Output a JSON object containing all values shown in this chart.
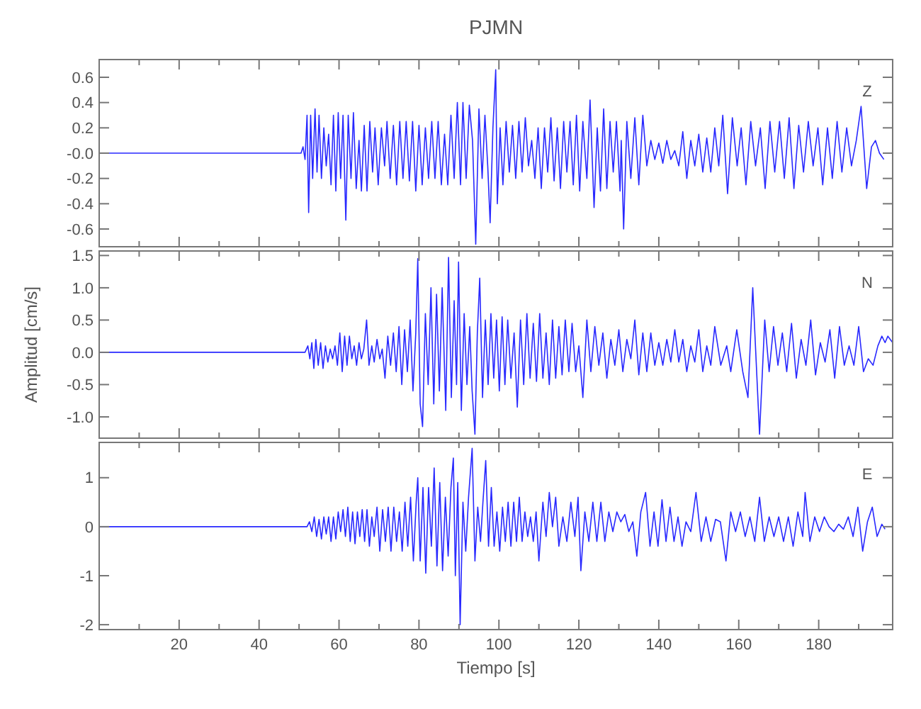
{
  "chart_data": [
    {
      "type": "line",
      "title": "PJMN",
      "annotations": [
        "Z"
      ],
      "xlim": [
        0,
        198.5
      ],
      "ylim": [
        -0.74,
        0.74
      ],
      "tick_labels": "y",
      "grid": false,
      "xticks": [
        {
          "value": 10,
          "label": null
        },
        20,
        {
          "value": 30,
          "label": null
        },
        40,
        {
          "value": 50,
          "label": null
        },
        60,
        {
          "value": 70,
          "label": null
        },
        80,
        {
          "value": 90,
          "label": null
        },
        100,
        {
          "value": 110,
          "label": null
        },
        120,
        {
          "value": 130,
          "label": null
        },
        140,
        {
          "value": 150,
          "label": null
        },
        160,
        {
          "value": 170,
          "label": null
        },
        180,
        {
          "value": 190,
          "label": null
        }
      ],
      "yticks": [
        {
          "value": -0.6,
          "label": "-0.6"
        },
        {
          "value": -0.4,
          "label": "-0.4"
        },
        {
          "value": -0.2,
          "label": "-0.2"
        },
        {
          "value": 0,
          "label": "-0.0"
        },
        0.2,
        0.4,
        0.6
      ],
      "series": [
        {
          "color": "#2828ff",
          "x": [
            0,
            50.5,
            51,
            51.5,
            52,
            52.4,
            52.9,
            53.4,
            54,
            54.5,
            55,
            55.6,
            56.2,
            56.8,
            57.4,
            58,
            58.6,
            59.2,
            59.8,
            60.4,
            61,
            61.7,
            62.3,
            63,
            63.6,
            64.3,
            65,
            65.6,
            66.3,
            67,
            67.7,
            68.4,
            69,
            69.8,
            70.6,
            71.4,
            72,
            72.8,
            73.6,
            74.4,
            75.2,
            76,
            76.8,
            77.6,
            78.4,
            79.2,
            80,
            80.8,
            81.6,
            82.4,
            83.2,
            84,
            84.8,
            85.6,
            86.4,
            87.2,
            88,
            88.8,
            89.6,
            90.4,
            91,
            91.8,
            92.6,
            93.4,
            94.2,
            95,
            95.8,
            96.5,
            97.2,
            97.8,
            98.5,
            99.2,
            99.6,
            100.3,
            101,
            101.8,
            102.6,
            103.4,
            104.2,
            105,
            105.8,
            106.6,
            107.4,
            108.2,
            109,
            109.8,
            110.6,
            111.4,
            112.2,
            113,
            113.8,
            114.6,
            115.4,
            116.2,
            117,
            117.8,
            118.6,
            119.4,
            120.2,
            121,
            122,
            122.8,
            123.8,
            124.6,
            125.4,
            126.2,
            127,
            127.8,
            128.6,
            129.4,
            130.3,
            130.6,
            131.2,
            132,
            133,
            134,
            135,
            136,
            137,
            138,
            139,
            140,
            141,
            142,
            143,
            144,
            145,
            146,
            147,
            148,
            149,
            150,
            151,
            152,
            153,
            154,
            155,
            156,
            157.2,
            158.4,
            159.6,
            160.6,
            161.8,
            163,
            164.2,
            165.4,
            166.6,
            167.8,
            169,
            170.2,
            171.4,
            172.6,
            173.8,
            175,
            176.2,
            177.4,
            178.6,
            179.8,
            181,
            182.2,
            183.4,
            184.6,
            185.8,
            187,
            188.2,
            189.4,
            190.6,
            192,
            193.2,
            194.2,
            195.2,
            196.3
          ],
          "values": [
            0,
            0,
            0.05,
            -0.05,
            0.3,
            -0.47,
            0.3,
            -0.2,
            0.35,
            -0.15,
            0.3,
            -0.2,
            0.2,
            -0.1,
            0.15,
            -0.25,
            0.3,
            -0.3,
            0.32,
            -0.2,
            0.3,
            -0.53,
            0.3,
            -0.2,
            0.32,
            -0.28,
            0.1,
            -0.3,
            0.22,
            -0.3,
            0.25,
            -0.15,
            0.2,
            -0.25,
            0.2,
            -0.1,
            0.25,
            -0.2,
            0.22,
            -0.25,
            0.25,
            -0.2,
            0.25,
            -0.22,
            0.25,
            -0.3,
            0.22,
            -0.25,
            0.2,
            -0.2,
            0.25,
            -0.2,
            0.25,
            -0.25,
            0.15,
            -0.25,
            0.3,
            -0.2,
            0.4,
            -0.25,
            0.4,
            -0.2,
            0.38,
            0.1,
            -0.72,
            0.35,
            -0.2,
            0.3,
            -0.1,
            -0.55,
            0.2,
            0.66,
            -0.4,
            0.2,
            -0.25,
            0.25,
            -0.15,
            0.22,
            -0.2,
            0.25,
            -0.15,
            0.28,
            -0.1,
            0.1,
            -0.2,
            0.2,
            -0.28,
            0.2,
            -0.15,
            0.28,
            -0.22,
            0.2,
            -0.28,
            0.25,
            -0.15,
            0.25,
            -0.25,
            0.3,
            -0.3,
            0.25,
            -0.2,
            0.42,
            -0.43,
            0.2,
            -0.3,
            0.35,
            -0.28,
            0.25,
            -0.15,
            0.25,
            -0.3,
            0.1,
            -0.6,
            0.25,
            -0.2,
            0.28,
            -0.25,
            0.3,
            -0.1,
            0.1,
            -0.05,
            0.08,
            -0.08,
            0.1,
            -0.05,
            0.02,
            -0.1,
            0.17,
            -0.2,
            0.1,
            -0.1,
            0.15,
            -0.15,
            0.12,
            -0.15,
            0.2,
            -0.1,
            0.3,
            -0.32,
            0.28,
            -0.1,
            0.2,
            -0.25,
            0.25,
            -0.1,
            0.2,
            -0.28,
            0.25,
            -0.15,
            0.25,
            -0.2,
            0.28,
            -0.28,
            0.22,
            -0.15,
            0.25,
            -0.1,
            0.2,
            -0.25,
            0.2,
            -0.2,
            0.25,
            -0.15,
            0.2,
            -0.1,
            0.1,
            0.37,
            -0.28,
            0.05,
            0.1,
            0,
            -0.05
          ]
        }
      ]
    },
    {
      "type": "line",
      "ylabel": "Amplitud [cm/s]",
      "annotations": [
        "N"
      ],
      "xlim": [
        0,
        198.5
      ],
      "ylim": [
        -1.33,
        1.57
      ],
      "tick_labels": "y",
      "grid": false,
      "xticks": [
        {
          "value": 10,
          "label": null
        },
        20,
        {
          "value": 30,
          "label": null
        },
        40,
        {
          "value": 50,
          "label": null
        },
        60,
        {
          "value": 70,
          "label": null
        },
        80,
        {
          "value": 90,
          "label": null
        },
        100,
        {
          "value": 110,
          "label": null
        },
        120,
        {
          "value": 130,
          "label": null
        },
        140,
        {
          "value": 150,
          "label": null
        },
        160,
        {
          "value": 170,
          "label": null
        },
        180,
        {
          "value": 190,
          "label": null
        }
      ],
      "yticks": [
        {
          "value": -1,
          "label": "-1.0"
        },
        {
          "value": -0.5,
          "label": "-0.5"
        },
        {
          "value": 0,
          "label": "0.0"
        },
        0.5,
        {
          "value": 1,
          "label": "1.0"
        },
        1.5
      ],
      "series": [
        {
          "color": "#2828ff",
          "x": [
            0,
            51.5,
            52.2,
            52.7,
            53.2,
            53.7,
            54.2,
            54.8,
            55.4,
            56,
            56.6,
            57.2,
            57.8,
            58.4,
            59,
            59.6,
            60.2,
            60.8,
            61.4,
            62,
            62.6,
            63.2,
            63.8,
            64.4,
            65,
            65.6,
            66.2,
            66.9,
            67.5,
            68.2,
            68.8,
            69.5,
            70.2,
            70.8,
            71.5,
            72.2,
            72.9,
            73.6,
            74.3,
            75,
            75.7,
            76.4,
            77.1,
            77.8,
            78.5,
            79.2,
            79.7,
            80.3,
            80.9,
            81.6,
            82.3,
            83,
            83.7,
            84.4,
            85.1,
            85.8,
            86.7,
            87.4,
            88.1,
            88.8,
            89.4,
            89.9,
            90.6,
            91.3,
            92,
            92.7,
            93.3,
            94,
            94.6,
            95.2,
            95.9,
            96.6,
            97.3,
            98,
            98.7,
            99.4,
            100.1,
            100.8,
            101.5,
            102.2,
            103,
            103.8,
            104.6,
            105.4,
            106.2,
            107,
            107.8,
            108.6,
            109.4,
            110.2,
            111,
            111.8,
            112.6,
            113.4,
            114.2,
            115,
            115.8,
            116.6,
            117.5,
            118.3,
            119.2,
            120,
            121,
            122,
            123,
            124,
            125,
            126,
            127,
            128,
            129,
            130,
            131,
            132,
            133,
            134,
            135,
            136,
            137,
            138,
            139,
            140,
            141,
            142,
            143,
            144,
            145,
            146,
            147,
            148,
            149,
            150,
            151,
            152,
            153,
            154,
            155.5,
            157,
            158,
            159.5,
            161,
            162.3,
            163.5,
            165.2,
            166.5,
            167.6,
            168.7,
            169.8,
            170.9,
            172,
            173.2,
            174.4,
            175.6,
            176.8,
            178,
            179.2,
            180.4,
            181.6,
            182.8,
            184,
            185.2,
            186.4,
            187.6,
            188.8,
            190,
            191.2,
            192.4,
            193.6,
            194.8,
            195.8,
            196.6,
            197.3,
            198.5
          ],
          "values": [
            0,
            0,
            0.1,
            -0.1,
            0.15,
            -0.25,
            0.2,
            -0.2,
            0.15,
            -0.25,
            0.1,
            -0.15,
            0.05,
            -0.1,
            0.1,
            -0.2,
            0.3,
            -0.3,
            0.25,
            -0.2,
            0.25,
            -0.1,
            0.1,
            -0.2,
            0.15,
            -0.1,
            0.05,
            0.5,
            -0.2,
            0.1,
            -0.15,
            0.2,
            -0.1,
            0.05,
            -0.4,
            0.25,
            -0.2,
            0.3,
            -0.3,
            0.4,
            -0.5,
            0.35,
            -0.3,
            0.5,
            -0.6,
            0.3,
            1.45,
            -0.8,
            -1.15,
            0.6,
            -0.5,
            1,
            -0.8,
            0.9,
            -0.6,
            1,
            -0.9,
            1.47,
            -0.7,
            0.8,
            -0.5,
            1.4,
            -0.9,
            0.6,
            -0.5,
            0.4,
            -0.6,
            -1.27,
            0.3,
            1.15,
            -0.7,
            0.5,
            -0.5,
            0.6,
            -0.4,
            0.5,
            -0.6,
            0.55,
            -0.5,
            0.5,
            -0.4,
            0.3,
            -0.85,
            0.5,
            -0.5,
            0.6,
            -0.4,
            0.45,
            -0.45,
            0.6,
            -0.4,
            0.3,
            -0.5,
            0.5,
            -0.4,
            0.4,
            -0.35,
            0.5,
            -0.3,
            0.45,
            -0.3,
            0.1,
            -0.7,
            0.5,
            -0.3,
            0.4,
            -0.2,
            0.3,
            -0.4,
            0.2,
            -0.2,
            0.35,
            -0.3,
            0.2,
            -0.1,
            0.5,
            -0.35,
            0.3,
            -0.3,
            0.3,
            -0.2,
            0.15,
            -0.2,
            0.2,
            -0.15,
            0.35,
            -0.15,
            0.2,
            -0.3,
            0.1,
            -0.15,
            0.35,
            -0.3,
            0.1,
            -0.2,
            0.4,
            -0.2,
            0.1,
            -0.3,
            0.35,
            -0.3,
            -0.7,
            1,
            -1.27,
            0.5,
            -0.3,
            0.4,
            -0.2,
            0.3,
            -0.3,
            0.45,
            -0.4,
            0.2,
            -0.2,
            0.5,
            -0.35,
            0.15,
            -0.15,
            0.35,
            -0.4,
            0.4,
            -0.2,
            0.1,
            -0.2,
            0.4,
            -0.3,
            -0.1,
            -0.2,
            0.1,
            0.25,
            0.15,
            0.25,
            0.15
          ]
        }
      ]
    },
    {
      "type": "line",
      "xlabel": "Tiempo [s]",
      "annotations": [
        "E"
      ],
      "xlim": [
        0,
        198.5
      ],
      "ylim": [
        -2.1,
        1.72
      ],
      "grid": false,
      "xticks": [
        {
          "value": 10,
          "label": null
        },
        20,
        {
          "value": 30,
          "label": null
        },
        40,
        {
          "value": 50,
          "label": null
        },
        60,
        {
          "value": 70,
          "label": null
        },
        80,
        {
          "value": 90,
          "label": null
        },
        100,
        {
          "value": 110,
          "label": null
        },
        120,
        {
          "value": 130,
          "label": null
        },
        140,
        {
          "value": 150,
          "label": null
        },
        160,
        {
          "value": 170,
          "label": null
        },
        180,
        {
          "value": 190,
          "label": null
        }
      ],
      "yticks": [
        -2,
        -1,
        0,
        1
      ],
      "series": [
        {
          "color": "#2828ff",
          "x": [
            0,
            52,
            52.6,
            53.2,
            53.8,
            54.4,
            55,
            55.6,
            56.2,
            56.8,
            57.4,
            58,
            58.6,
            59.2,
            59.8,
            60.4,
            61,
            61.6,
            62.2,
            62.8,
            63.4,
            64,
            64.6,
            65.2,
            65.8,
            66.4,
            67,
            67.6,
            68.2,
            68.8,
            69.5,
            70.2,
            70.9,
            71.6,
            72.3,
            73,
            73.7,
            74.4,
            75.1,
            75.8,
            76.5,
            77.2,
            77.9,
            78.6,
            79.3,
            79.7,
            80.3,
            81,
            81.7,
            82.4,
            83.1,
            83.8,
            84.5,
            85.2,
            85.9,
            86.6,
            87.3,
            88,
            88.6,
            89.1,
            89.7,
            90.3,
            91,
            91.7,
            92.4,
            93.3,
            94,
            94.7,
            95.4,
            96,
            96.7,
            97.4,
            98.1,
            98.8,
            99.5,
            100.2,
            100.9,
            101.6,
            102.3,
            103,
            103.7,
            104.4,
            105.1,
            105.8,
            106.5,
            107.2,
            107.9,
            108.6,
            109.3,
            110,
            111,
            111.8,
            112.6,
            113.4,
            114.2,
            115,
            116,
            117,
            118,
            119,
            119.8,
            120.5,
            121.5,
            122.5,
            123.5,
            124.5,
            125.5,
            126.5,
            127.5,
            128.5,
            129.5,
            130.5,
            131.5,
            132.5,
            133.5,
            134.5,
            135.5,
            136.7,
            137.8,
            138.8,
            139.8,
            140.8,
            141.8,
            142.8,
            143.8,
            144.8,
            145.8,
            146.8,
            148,
            149.3,
            150.6,
            151.8,
            153,
            154.2,
            155.4,
            156.8,
            158,
            159.2,
            160.4,
            161.6,
            162.8,
            164,
            165.2,
            166.4,
            167.6,
            168.8,
            170,
            171.2,
            172.4,
            173.6,
            174.8,
            176,
            176.6,
            177.8,
            179,
            180.2,
            181.4,
            182.6,
            183.8,
            185,
            186.2,
            187.4,
            188.6,
            189.8,
            191,
            192.2,
            193.4,
            194.6,
            195.8,
            196.6
          ],
          "values": [
            0,
            0,
            0.1,
            -0.1,
            0.2,
            -0.2,
            0.15,
            -0.25,
            0.2,
            -0.15,
            0.2,
            -0.3,
            0.2,
            -0.25,
            0.3,
            -0.1,
            0.35,
            -0.2,
            0.4,
            -0.3,
            0.3,
            -0.35,
            0.3,
            -0.2,
            0.35,
            -0.3,
            0.35,
            -0.4,
            0.2,
            -0.2,
            0.4,
            -0.5,
            0.35,
            -0.3,
            0.4,
            -0.5,
            0.4,
            -0.3,
            0.3,
            -0.5,
            0.5,
            -0.4,
            0.6,
            -0.7,
            0.5,
            1,
            -0.7,
            0.8,
            -0.95,
            0.8,
            -0.4,
            1.2,
            -0.8,
            0.9,
            -0.9,
            0.6,
            -0.6,
            0.8,
            1.4,
            -1,
            0.9,
            -2,
            0.5,
            -0.5,
            0.6,
            1.6,
            -0.7,
            0.4,
            -0.3,
            0.5,
            1.35,
            -0.4,
            0.8,
            -0.4,
            0.3,
            -0.5,
            0.4,
            -0.3,
            0.5,
            -0.4,
            0.5,
            -0.3,
            0.6,
            -0.3,
            0.3,
            -0.2,
            0.2,
            -0.3,
            0.3,
            -0.7,
            0.5,
            -0.2,
            0.7,
            0,
            0.6,
            -0.4,
            0.2,
            -0.3,
            0.5,
            -0.2,
            0.6,
            -0.9,
            0.3,
            -0.3,
            0.5,
            -0.3,
            0.5,
            -0.3,
            0.3,
            -0.1,
            0.3,
            0.1,
            0.25,
            -0.1,
            0.1,
            -0.6,
            0.3,
            0.7,
            -0.4,
            0.3,
            -0.4,
            0.55,
            -0.3,
            0.4,
            -0.3,
            0.2,
            -0.4,
            0.1,
            -0.1,
            0.7,
            -0.3,
            0.2,
            -0.3,
            0.15,
            0.1,
            -0.7,
            0.3,
            -0.1,
            0.3,
            -0.2,
            0.2,
            -0.3,
            0.6,
            -0.3,
            0.2,
            -0.2,
            0.2,
            -0.3,
            0.2,
            -0.4,
            0.3,
            -0.2,
            0.7,
            -0.3,
            0.2,
            -0.1,
            0.2,
            0,
            -0.1,
            0.05,
            -0.05,
            0.2,
            -0.2,
            0.4,
            -0.5,
            0.1,
            0.4,
            -0.2,
            0.05,
            -0.05
          ]
        }
      ]
    }
  ]
}
